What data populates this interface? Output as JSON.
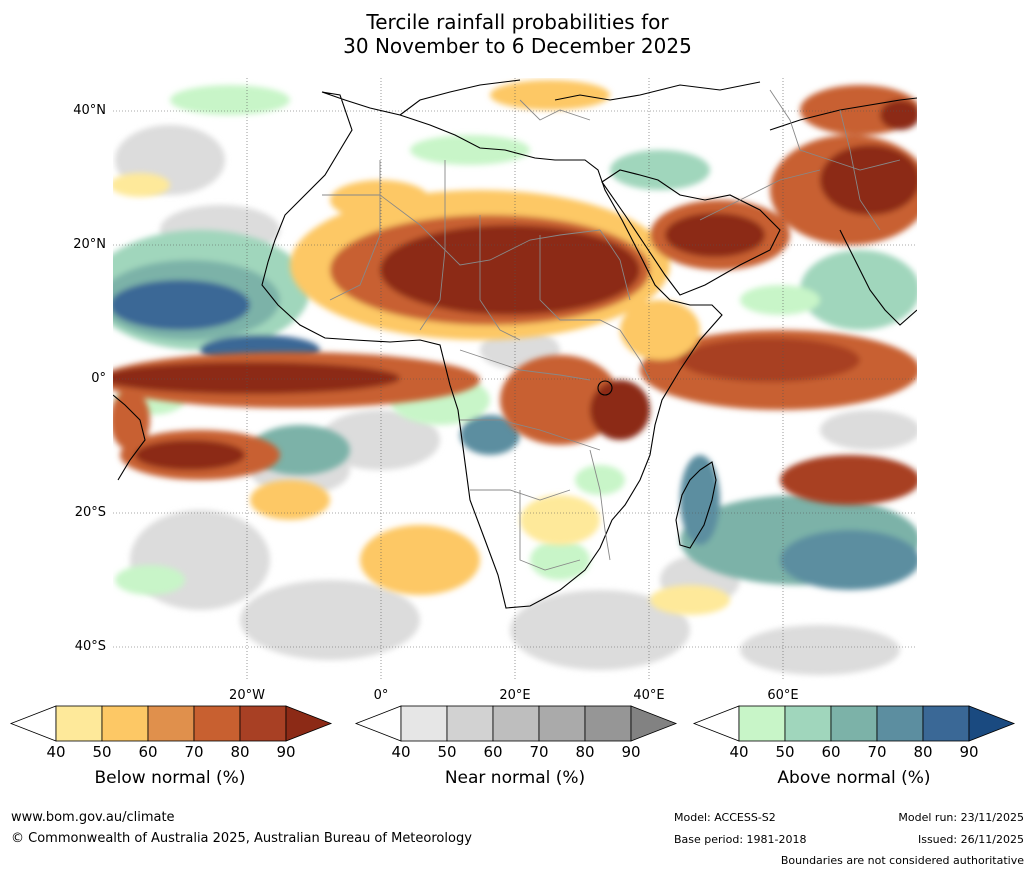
{
  "title": {
    "line1": "Tercile rainfall probabilities for",
    "line2": "30 November to 6 December 2025"
  },
  "map": {
    "lat_labels": [
      "40°N",
      "20°N",
      "0°",
      "20°S",
      "40°S"
    ],
    "lon_labels": [
      "20°W",
      "0°",
      "20°E",
      "40°E",
      "60°E"
    ],
    "land_color": "#ffffff",
    "coastline_color": "#000000",
    "border_color": "#888888"
  },
  "colorbars": [
    {
      "name": "Below normal (%)",
      "ticks": [
        "40",
        "50",
        "60",
        "70",
        "80",
        "90"
      ],
      "colors": [
        "#ffffff",
        "#fee99a",
        "#fdc865",
        "#e0904c",
        "#c86030",
        "#a84024",
        "#8c2a16"
      ]
    },
    {
      "name": "Near normal (%)",
      "ticks": [
        "40",
        "50",
        "60",
        "70",
        "80",
        "90"
      ],
      "colors": [
        "#ffffff",
        "#e6e6e6",
        "#d2d2d2",
        "#bebebe",
        "#aaaaaa",
        "#969696",
        "#828282"
      ]
    },
    {
      "name": "Above normal (%)",
      "ticks": [
        "40",
        "50",
        "60",
        "70",
        "80",
        "90"
      ],
      "colors": [
        "#ffffff",
        "#c8f5c8",
        "#a0d6bc",
        "#7cb2a8",
        "#5c8ea0",
        "#3a6896",
        "#1a4a80"
      ]
    }
  ],
  "footer": {
    "website": "www.bom.gov.au/climate",
    "copyright": "© Commonwealth of Australia 2025, Australian Bureau of Meteorology",
    "model": "Model: ACCESS-S2",
    "base_period": "Base period: 1981-2018",
    "model_run": "Model run: 23/11/2025",
    "issued": "Issued: 26/11/2025",
    "disclaimer": "Boundaries are not considered authoritative"
  }
}
